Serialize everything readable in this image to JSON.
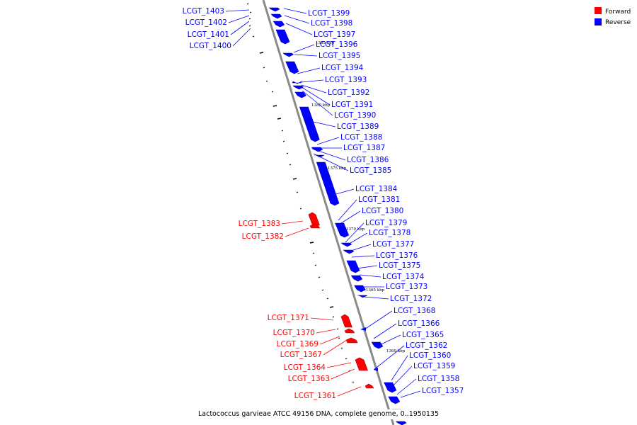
{
  "title": "Lactococcus garvieae ATCC 49156 DNA, complete genome, 0..1950135",
  "colors": {
    "forward": "#ff0000",
    "reverse": "#0000ff",
    "backbone": "#8a8a8a"
  },
  "legend": [
    {
      "label": "Forward",
      "color": "#ff0000"
    },
    {
      "label": "Reverse",
      "color": "#0000ff"
    }
  ],
  "kbp_markers": [
    "1385 kbp",
    "1380 kbp",
    "1375 kbp",
    "1370 kbp",
    "1365 kbp",
    "1360 kbp"
  ],
  "forward_genes": [
    "LCGT_1383",
    "LCGT_1382",
    "LCGT_1371",
    "LCGT_1370",
    "LCGT_1369",
    "LCGT_1367",
    "LCGT_1364",
    "LCGT_1363",
    "LCGT_1361"
  ],
  "reverse_genes_left": [
    "LCGT_1403",
    "LCGT_1402",
    "LCGT_1401",
    "LCGT_1400"
  ],
  "reverse_genes_right": [
    "LCGT_1399",
    "LCGT_1398",
    "LCGT_1397",
    "LCGT_1396",
    "LCGT_1395",
    "LCGT_1394",
    "LCGT_1393",
    "LCGT_1392",
    "LCGT_1391",
    "LCGT_1390",
    "LCGT_1389",
    "LCGT_1388",
    "LCGT_1387",
    "LCGT_1386",
    "LCGT_1385",
    "LCGT_1384",
    "LCGT_1381",
    "LCGT_1380",
    "LCGT_1379",
    "LCGT_1378",
    "LCGT_1377",
    "LCGT_1376",
    "LCGT_1375",
    "LCGT_1374",
    "LCGT_1373",
    "LCGT_1372",
    "LCGT_1368",
    "LCGT_1366",
    "LCGT_1365",
    "LCGT_1362",
    "LCGT_1360",
    "LCGT_1359",
    "LCGT_1358",
    "LCGT_1357"
  ]
}
